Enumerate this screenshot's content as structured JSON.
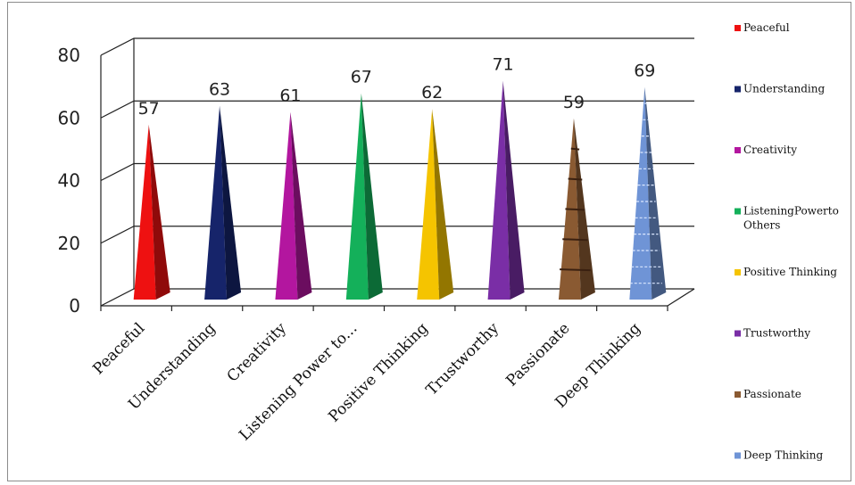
{
  "chart_data": {
    "type": "bar",
    "bar_shape": "cone",
    "categories": [
      "Peaceful",
      "Understanding",
      "Creativity",
      "Listening Power to...",
      "Positive Thinking",
      "Trustworthy",
      "Passionate",
      "Deep Thinking"
    ],
    "values": [
      57,
      63,
      61,
      67,
      62,
      71,
      59,
      69
    ],
    "colors": [
      "#ee1111",
      "#16246a",
      "#b3169f",
      "#14b05a",
      "#f5c400",
      "#7a2ea6",
      "#8a5a32",
      "#6f94d6"
    ],
    "legend": [
      "Peaceful",
      "Understanding",
      "Creativity",
      "ListeningPowerto Others",
      "Positive Thinking",
      "Trustworthy",
      "Passionate",
      "Deep Thinking"
    ],
    "legend_position": "right",
    "yticks": [
      "0",
      "20",
      "40",
      "60",
      "80"
    ],
    "ylim": [
      0,
      80
    ],
    "grid": true,
    "title": "",
    "xlabel": "",
    "ylabel": ""
  }
}
